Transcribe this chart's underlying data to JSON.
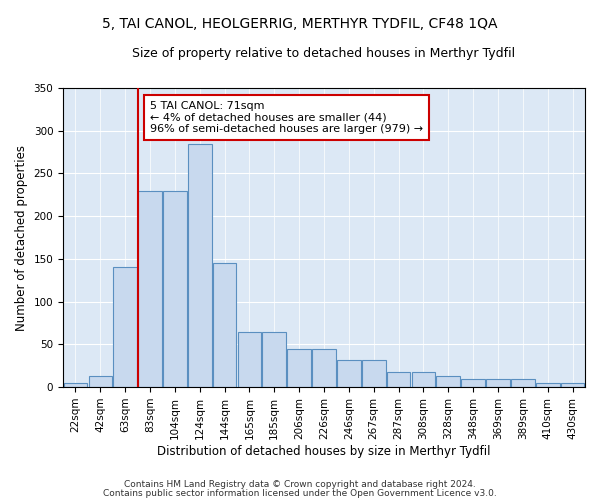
{
  "title": "5, TAI CANOL, HEOLGERRIG, MERTHYR TYDFIL, CF48 1QA",
  "subtitle": "Size of property relative to detached houses in Merthyr Tydfil",
  "xlabel": "Distribution of detached houses by size in Merthyr Tydfil",
  "ylabel": "Number of detached properties",
  "annotation_line1": "5 TAI CANOL: 71sqm",
  "annotation_line2": "← 4% of detached houses are smaller (44)",
  "annotation_line3": "96% of semi-detached houses are larger (979) →",
  "footer1": "Contains HM Land Registry data © Crown copyright and database right 2024.",
  "footer2": "Contains public sector information licensed under the Open Government Licence v3.0.",
  "bar_labels": [
    "22sqm",
    "42sqm",
    "63sqm",
    "83sqm",
    "104sqm",
    "124sqm",
    "144sqm",
    "165sqm",
    "185sqm",
    "206sqm",
    "226sqm",
    "246sqm",
    "267sqm",
    "287sqm",
    "308sqm",
    "328sqm",
    "348sqm",
    "369sqm",
    "389sqm",
    "410sqm",
    "430sqm"
  ],
  "bar_values": [
    5,
    13,
    140,
    230,
    230,
    285,
    145,
    65,
    65,
    45,
    45,
    32,
    32,
    18,
    18,
    13,
    10,
    9,
    9,
    5,
    5
  ],
  "bar_color": "#c8d9ee",
  "bar_edge_color": "#5a8fc0",
  "vline_x": 2.5,
  "vline_color": "#cc0000",
  "annotation_box_color": "#cc0000",
  "ylim": [
    0,
    350
  ],
  "yticks": [
    0,
    50,
    100,
    150,
    200,
    250,
    300,
    350
  ],
  "background_color": "#dce8f5",
  "grid_color": "#ffffff",
  "title_fontsize": 10,
  "subtitle_fontsize": 9,
  "xlabel_fontsize": 8.5,
  "ylabel_fontsize": 8.5,
  "annotation_fontsize": 8,
  "tick_fontsize": 7.5,
  "footer_fontsize": 6.5
}
